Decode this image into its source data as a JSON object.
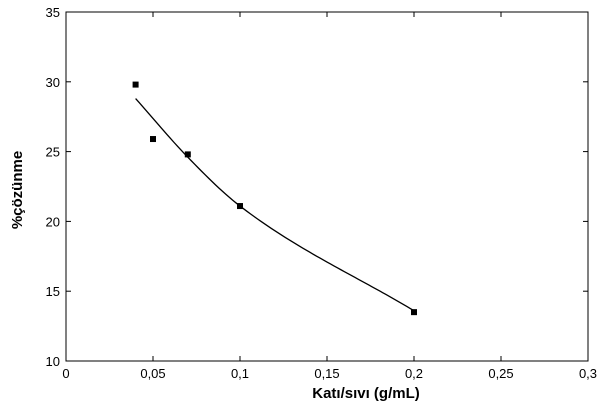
{
  "chart_data": {
    "type": "scatter",
    "xlabel": "Katı/sıvı (g/mL)",
    "ylabel": "%çözünme",
    "xlim": [
      0,
      0.3
    ],
    "ylim": [
      10,
      35
    ],
    "x_ticks": [
      0,
      0.05,
      0.1,
      0.15,
      0.2,
      0.25,
      0.3
    ],
    "x_tick_labels": [
      "0",
      "0,05",
      "0,1",
      "0,15",
      "0,2",
      "0,25",
      "0,3"
    ],
    "y_ticks": [
      10,
      15,
      20,
      25,
      30,
      35
    ],
    "y_tick_labels": [
      "10",
      "15",
      "20",
      "25",
      "30",
      "35"
    ],
    "grid": false,
    "legend": "none",
    "series": [
      {
        "type": "scatter",
        "marker": "square",
        "color": "#000000",
        "x": [
          0.04,
          0.05,
          0.07,
          0.1,
          0.2
        ],
        "y": [
          29.8,
          25.9,
          24.8,
          21.1,
          13.5
        ]
      },
      {
        "type": "line",
        "color": "#000000",
        "x": [
          0.04,
          0.07,
          0.1,
          0.2
        ],
        "y": [
          28.8,
          24.6,
          21.1,
          13.6
        ]
      }
    ]
  }
}
